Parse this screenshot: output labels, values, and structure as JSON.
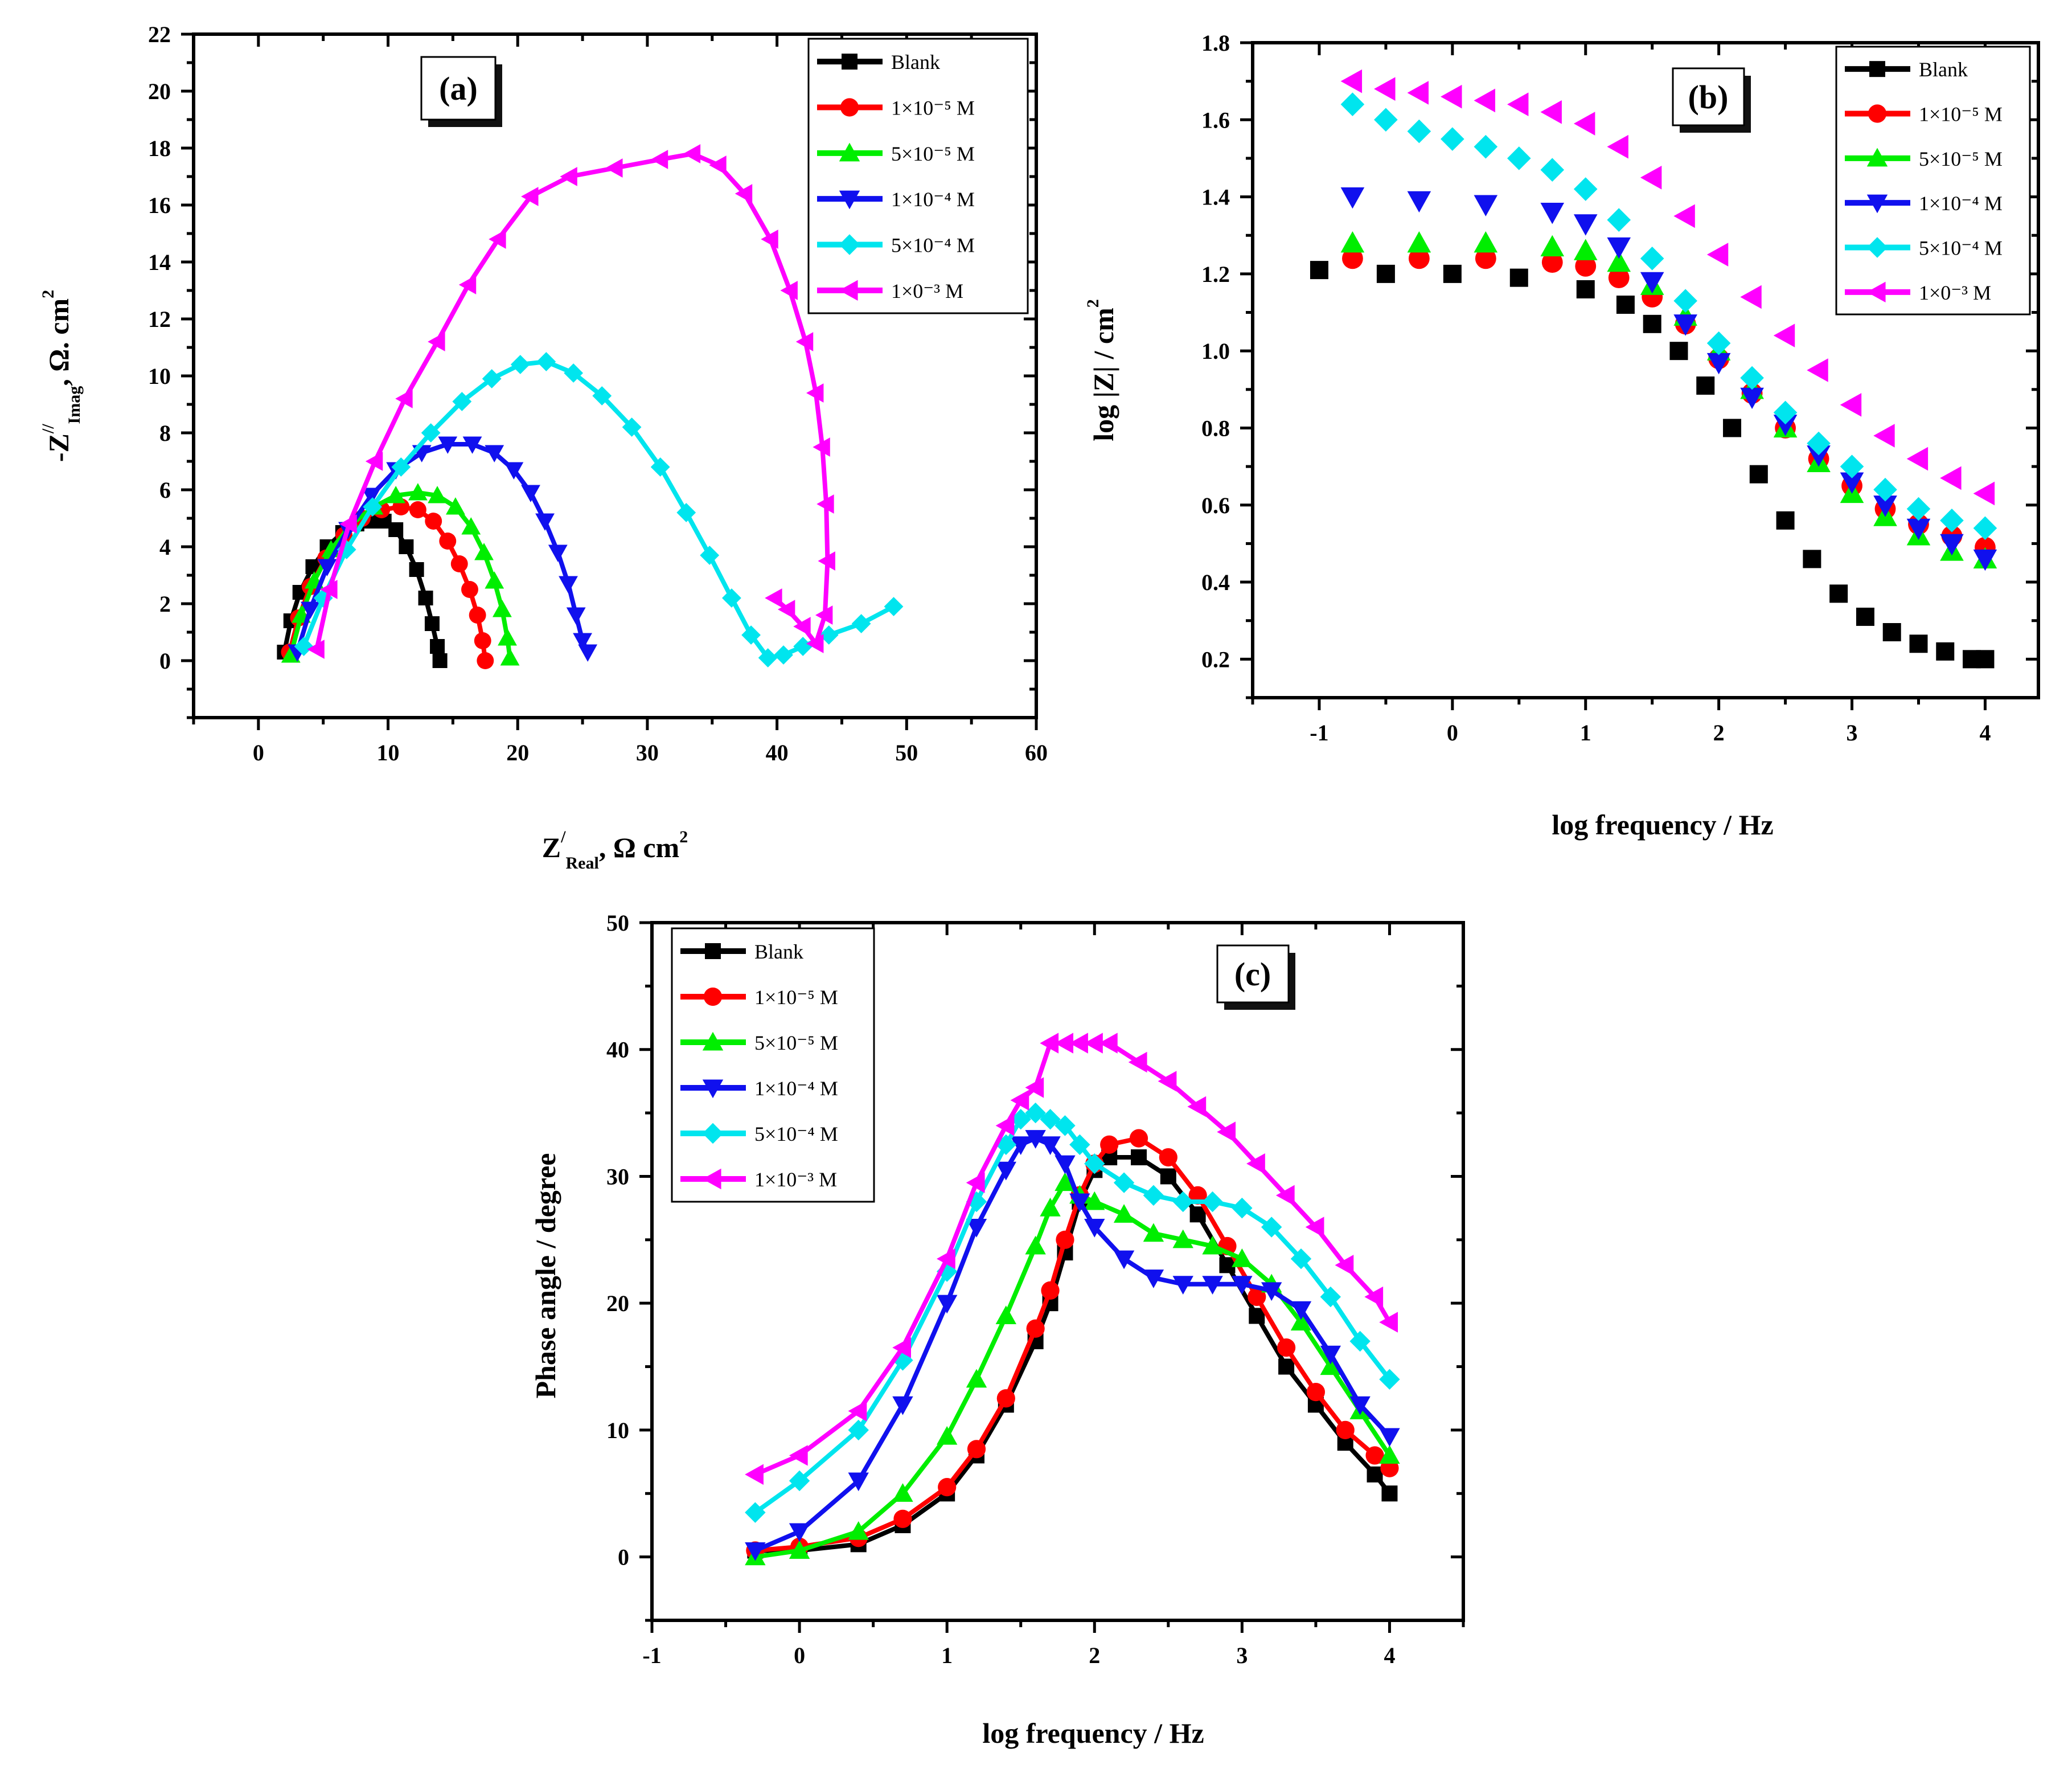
{
  "figure": "EIS curves: Nyquist, Bode magnitude and Bode phase plots",
  "chart_data": [
    {
      "id": "a",
      "type": "scatter",
      "panel_label": "(a)",
      "xlabel_main": "Z",
      "xlabel_sup": "/",
      "xlabel_sub": "Real",
      "xlabel_units": ", Ω cm",
      "xlabel_units_sup": "2",
      "ylabel_main": "-Z",
      "ylabel_sup": "//",
      "ylabel_sub": "Imag",
      "ylabel_units": ", Ω. cm",
      "ylabel_units_sup": "2",
      "xlim": [
        -5,
        60
      ],
      "ylim": [
        -2,
        22
      ],
      "xticks": [
        0,
        10,
        20,
        30,
        40,
        50,
        60
      ],
      "yticks": [
        0,
        2,
        4,
        6,
        8,
        10,
        12,
        14,
        16,
        18,
        20,
        22
      ],
      "series": [
        {
          "name": "Blank",
          "color": "#000000",
          "marker": "square",
          "x": [
            2.0,
            2.5,
            3.2,
            4.2,
            5.3,
            6.5,
            7.6,
            8.7,
            9.7,
            10.6,
            11.4,
            12.2,
            12.9,
            13.4,
            13.8,
            14.0
          ],
          "y": [
            0.3,
            1.4,
            2.4,
            3.3,
            4.0,
            4.5,
            4.8,
            4.9,
            4.9,
            4.6,
            4.0,
            3.2,
            2.2,
            1.3,
            0.5,
            0.0
          ]
        },
        {
          "name": "1×10⁻⁵ M",
          "color": "#ff0000",
          "marker": "circle",
          "x": [
            2.4,
            3.1,
            4.0,
            5.2,
            6.6,
            8.0,
            9.5,
            11.0,
            12.3,
            13.5,
            14.6,
            15.5,
            16.3,
            16.9,
            17.3,
            17.5
          ],
          "y": [
            0.3,
            1.5,
            2.6,
            3.6,
            4.4,
            5.0,
            5.3,
            5.4,
            5.3,
            4.9,
            4.2,
            3.4,
            2.5,
            1.6,
            0.7,
            0.0
          ]
        },
        {
          "name": "5×10⁻⁵ M",
          "color": "#00ee00",
          "marker": "triangle-up",
          "x": [
            2.5,
            3.3,
            4.3,
            5.6,
            7.2,
            8.9,
            10.6,
            12.3,
            13.8,
            15.2,
            16.4,
            17.4,
            18.2,
            18.8,
            19.2,
            19.4
          ],
          "y": [
            0.2,
            1.6,
            2.8,
            3.9,
            4.8,
            5.4,
            5.8,
            5.9,
            5.8,
            5.4,
            4.7,
            3.8,
            2.8,
            1.8,
            0.8,
            0.1
          ]
        },
        {
          "name": "1×10⁻⁴ M",
          "color": "#1010ee",
          "marker": "triangle-down",
          "x": [
            3.0,
            4.0,
            5.3,
            6.9,
            8.7,
            10.6,
            12.6,
            14.6,
            16.5,
            18.2,
            19.7,
            21.0,
            22.1,
            23.1,
            23.9,
            24.5,
            25.0,
            25.4
          ],
          "y": [
            0.3,
            1.8,
            3.3,
            4.6,
            5.8,
            6.7,
            7.3,
            7.6,
            7.6,
            7.3,
            6.7,
            5.9,
            4.9,
            3.8,
            2.7,
            1.6,
            0.7,
            0.3
          ]
        },
        {
          "name": "5×10⁻⁴ M",
          "color": "#00e5ee",
          "marker": "diamond",
          "x": [
            3.5,
            5.0,
            6.8,
            8.8,
            11.0,
            13.3,
            15.7,
            18.0,
            20.2,
            22.2,
            24.3,
            26.5,
            28.8,
            31.0,
            33.0,
            34.8,
            36.5,
            38.0,
            39.3,
            40.5,
            42.0,
            44.0,
            46.5,
            49.0
          ],
          "y": [
            0.5,
            2.2,
            3.9,
            5.4,
            6.8,
            8.0,
            9.1,
            9.9,
            10.4,
            10.5,
            10.1,
            9.3,
            8.2,
            6.8,
            5.2,
            3.7,
            2.2,
            0.9,
            0.1,
            0.2,
            0.5,
            0.9,
            1.3,
            1.9
          ]
        },
        {
          "name": "1×0⁻³ M",
          "color": "#ff00ff",
          "marker": "triangle-left",
          "x": [
            4.5,
            5.5,
            7.0,
            9.0,
            11.3,
            13.8,
            16.2,
            18.5,
            21.0,
            24.0,
            27.5,
            31.0,
            33.5,
            35.5,
            37.5,
            39.5,
            41.0,
            42.2,
            43.0,
            43.5,
            43.8,
            43.9,
            43.7,
            43.0,
            42.0,
            40.8,
            39.8
          ],
          "y": [
            0.4,
            2.5,
            4.8,
            7.0,
            9.2,
            11.2,
            13.2,
            14.8,
            16.3,
            17.0,
            17.3,
            17.6,
            17.8,
            17.4,
            16.4,
            14.8,
            13.0,
            11.2,
            9.4,
            7.5,
            5.5,
            3.5,
            1.6,
            0.6,
            1.2,
            1.8,
            2.2
          ]
        }
      ]
    },
    {
      "id": "b",
      "type": "scatter",
      "panel_label": "(b)",
      "xlabel": "log frequency / Hz",
      "ylabel": "log |Z| / cm",
      "ylabel_sup": "2",
      "xlim": [
        -1.5,
        4.4
      ],
      "ylim": [
        0.1,
        1.8
      ],
      "xticks": [
        -1,
        0,
        1,
        2,
        3,
        4
      ],
      "yticks": [
        0.2,
        0.4,
        0.6,
        0.8,
        1.0,
        1.2,
        1.4,
        1.6,
        1.8
      ],
      "series": [
        {
          "name": "Blank",
          "color": "#000000",
          "marker": "square",
          "x": [
            -1.0,
            -0.5,
            0.0,
            0.5,
            1.0,
            1.3,
            1.5,
            1.7,
            1.9,
            2.1,
            2.3,
            2.5,
            2.7,
            2.9,
            3.1,
            3.3,
            3.5,
            3.7,
            3.9,
            4.0
          ],
          "y": [
            1.21,
            1.2,
            1.2,
            1.19,
            1.16,
            1.12,
            1.07,
            1.0,
            0.91,
            0.8,
            0.68,
            0.56,
            0.46,
            0.37,
            0.31,
            0.27,
            0.24,
            0.22,
            0.2,
            0.2
          ]
        },
        {
          "name": "1×10⁻⁵ M",
          "color": "#ff0000",
          "marker": "circle",
          "x": [
            -0.75,
            -0.25,
            0.25,
            0.75,
            1.0,
            1.25,
            1.5,
            1.75,
            2.0,
            2.25,
            2.5,
            2.75,
            3.0,
            3.25,
            3.5,
            3.75,
            4.0
          ],
          "y": [
            1.24,
            1.24,
            1.24,
            1.23,
            1.22,
            1.19,
            1.14,
            1.07,
            0.98,
            0.89,
            0.8,
            0.72,
            0.65,
            0.59,
            0.55,
            0.52,
            0.49
          ]
        },
        {
          "name": "5×10⁻⁵ M",
          "color": "#00ee00",
          "marker": "triangle-up",
          "x": [
            -0.75,
            -0.25,
            0.25,
            0.75,
            1.0,
            1.25,
            1.5,
            1.75,
            2.0,
            2.25,
            2.5,
            2.75,
            3.0,
            3.25,
            3.5,
            3.75,
            4.0
          ],
          "y": [
            1.28,
            1.28,
            1.28,
            1.27,
            1.26,
            1.23,
            1.17,
            1.09,
            1.0,
            0.9,
            0.8,
            0.71,
            0.63,
            0.57,
            0.52,
            0.48,
            0.46
          ]
        },
        {
          "name": "1×10⁻⁴ M",
          "color": "#1010ee",
          "marker": "triangle-down",
          "x": [
            -0.75,
            -0.25,
            0.25,
            0.75,
            1.0,
            1.25,
            1.5,
            1.75,
            2.0,
            2.25,
            2.5,
            2.75,
            3.0,
            3.25,
            3.5,
            3.75,
            4.0
          ],
          "y": [
            1.4,
            1.39,
            1.38,
            1.36,
            1.33,
            1.27,
            1.18,
            1.07,
            0.97,
            0.88,
            0.81,
            0.73,
            0.66,
            0.6,
            0.54,
            0.5,
            0.46
          ]
        },
        {
          "name": "5×10⁻⁴ M",
          "color": "#00e5ee",
          "marker": "diamond",
          "x": [
            -0.75,
            -0.5,
            -0.25,
            0.0,
            0.25,
            0.5,
            0.75,
            1.0,
            1.25,
            1.5,
            1.75,
            2.0,
            2.25,
            2.5,
            2.75,
            3.0,
            3.25,
            3.5,
            3.75,
            4.0
          ],
          "y": [
            1.64,
            1.6,
            1.57,
            1.55,
            1.53,
            1.5,
            1.47,
            1.42,
            1.34,
            1.24,
            1.13,
            1.02,
            0.93,
            0.84,
            0.76,
            0.7,
            0.64,
            0.59,
            0.56,
            0.54
          ]
        },
        {
          "name": "1×0⁻³ M",
          "color": "#ff00ff",
          "marker": "triangle-left",
          "x": [
            -0.75,
            -0.5,
            -0.25,
            0.0,
            0.25,
            0.5,
            0.75,
            1.0,
            1.25,
            1.5,
            1.75,
            2.0,
            2.25,
            2.5,
            2.75,
            3.0,
            3.25,
            3.5,
            3.75,
            4.0
          ],
          "y": [
            1.7,
            1.68,
            1.67,
            1.66,
            1.65,
            1.64,
            1.62,
            1.59,
            1.53,
            1.45,
            1.35,
            1.25,
            1.14,
            1.04,
            0.95,
            0.86,
            0.78,
            0.72,
            0.67,
            0.63
          ]
        }
      ]
    },
    {
      "id": "c",
      "type": "scatter",
      "panel_label": "(c)",
      "xlabel": "log frequency / Hz",
      "ylabel": "Phase angle / degree",
      "xlim": [
        -1,
        4.5
      ],
      "ylim": [
        -5,
        50
      ],
      "xticks": [
        -1,
        0,
        1,
        2,
        3,
        4
      ],
      "yticks": [
        0,
        10,
        20,
        30,
        40,
        50
      ],
      "series": [
        {
          "name": "Blank",
          "color": "#000000",
          "marker": "square",
          "x": [
            -0.3,
            0.0,
            0.4,
            0.7,
            1.0,
            1.2,
            1.4,
            1.6,
            1.7,
            1.8,
            1.9,
            2.0,
            2.1,
            2.3,
            2.5,
            2.7,
            2.9,
            3.1,
            3.3,
            3.5,
            3.7,
            3.9,
            4.0
          ],
          "y": [
            0.5,
            0.5,
            1.0,
            2.5,
            5.0,
            8.0,
            12.0,
            17.0,
            20.0,
            24.0,
            28.0,
            30.5,
            31.5,
            31.5,
            30.0,
            27.0,
            23.0,
            19.0,
            15.0,
            12.0,
            9.0,
            6.5,
            5.0
          ]
        },
        {
          "name": "1×10⁻⁵ M",
          "color": "#ff0000",
          "marker": "circle",
          "x": [
            -0.3,
            0.0,
            0.4,
            0.7,
            1.0,
            1.2,
            1.4,
            1.6,
            1.7,
            1.8,
            1.9,
            2.0,
            2.1,
            2.3,
            2.5,
            2.7,
            2.9,
            3.1,
            3.3,
            3.5,
            3.7,
            3.9,
            4.0
          ],
          "y": [
            0.5,
            0.8,
            1.5,
            3.0,
            5.5,
            8.5,
            12.5,
            18.0,
            21.0,
            25.0,
            28.5,
            31.0,
            32.5,
            33.0,
            31.5,
            28.5,
            24.5,
            20.5,
            16.5,
            13.0,
            10.0,
            8.0,
            7.0
          ]
        },
        {
          "name": "5×10⁻⁵ M",
          "color": "#00ee00",
          "marker": "triangle-up",
          "x": [
            -0.3,
            0.0,
            0.4,
            0.7,
            1.0,
            1.2,
            1.4,
            1.6,
            1.7,
            1.8,
            1.9,
            2.0,
            2.2,
            2.4,
            2.6,
            2.8,
            3.0,
            3.2,
            3.4,
            3.6,
            3.8,
            4.0
          ],
          "y": [
            0.0,
            0.5,
            2.0,
            5.0,
            9.5,
            14.0,
            19.0,
            24.5,
            27.5,
            29.5,
            28.5,
            28.0,
            27.0,
            25.5,
            25.0,
            24.5,
            23.5,
            21.5,
            18.5,
            15.0,
            11.5,
            8.0
          ]
        },
        {
          "name": "1×10⁻⁴ M",
          "color": "#1010ee",
          "marker": "triangle-down",
          "x": [
            -0.3,
            0.0,
            0.4,
            0.7,
            1.0,
            1.2,
            1.4,
            1.5,
            1.6,
            1.7,
            1.8,
            1.9,
            2.0,
            2.2,
            2.4,
            2.6,
            2.8,
            3.0,
            3.2,
            3.4,
            3.6,
            3.8,
            4.0
          ],
          "y": [
            0.5,
            2.0,
            6.0,
            12.0,
            20.0,
            26.0,
            30.5,
            32.5,
            33.0,
            32.5,
            31.0,
            28.0,
            26.0,
            23.5,
            22.0,
            21.5,
            21.5,
            21.5,
            21.0,
            19.5,
            16.0,
            12.0,
            9.5
          ]
        },
        {
          "name": "5×10⁻⁴ M",
          "color": "#00e5ee",
          "marker": "diamond",
          "x": [
            -0.3,
            0.0,
            0.4,
            0.7,
            1.0,
            1.2,
            1.4,
            1.5,
            1.6,
            1.7,
            1.8,
            1.9,
            2.0,
            2.2,
            2.4,
            2.6,
            2.8,
            3.0,
            3.2,
            3.4,
            3.6,
            3.8,
            4.0
          ],
          "y": [
            3.5,
            6.0,
            10.0,
            15.5,
            22.5,
            28.0,
            32.5,
            34.5,
            35.0,
            34.5,
            34.0,
            32.5,
            31.0,
            29.5,
            28.5,
            28.0,
            28.0,
            27.5,
            26.0,
            23.5,
            20.5,
            17.0,
            14.0
          ]
        },
        {
          "name": "1×10⁻³ M",
          "color": "#ff00ff",
          "marker": "triangle-left",
          "x": [
            -0.3,
            0.0,
            0.4,
            0.7,
            1.0,
            1.2,
            1.4,
            1.5,
            1.6,
            1.7,
            1.8,
            1.9,
            2.0,
            2.1,
            2.3,
            2.5,
            2.7,
            2.9,
            3.1,
            3.3,
            3.5,
            3.7,
            3.9,
            4.0
          ],
          "y": [
            6.5,
            8.0,
            11.5,
            16.5,
            23.5,
            29.5,
            34.0,
            36.0,
            37.0,
            40.5,
            40.5,
            40.5,
            40.5,
            40.5,
            39.0,
            37.5,
            35.5,
            33.5,
            31.0,
            28.5,
            26.0,
            23.0,
            20.5,
            18.5
          ]
        }
      ]
    }
  ]
}
